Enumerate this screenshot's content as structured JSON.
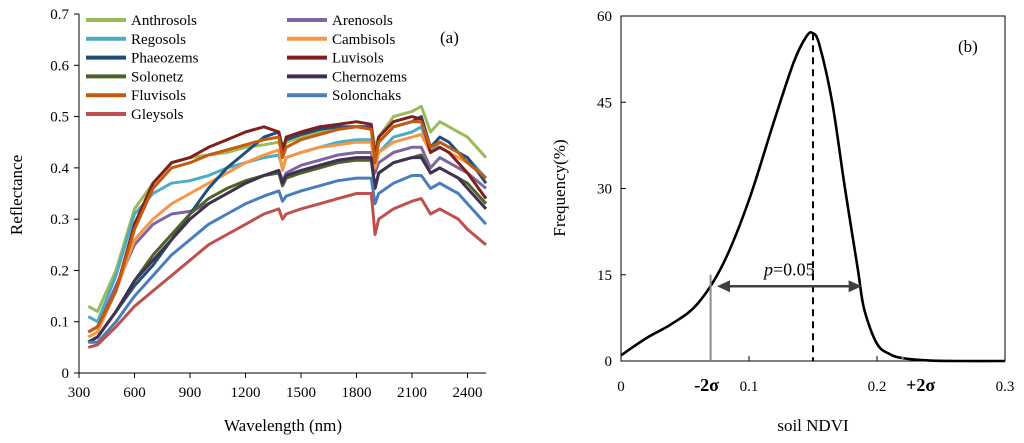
{
  "chart_data": [
    {
      "type": "line",
      "panel_label": "(a)",
      "title": "",
      "xlabel": "Wavelength (nm)",
      "ylabel": "Reflectance",
      "xlim": [
        300,
        2500
      ],
      "ylim": [
        0,
        0.7
      ],
      "xticks": [
        300,
        600,
        900,
        1200,
        1500,
        1800,
        2100,
        2400
      ],
      "yticks": [
        0,
        0.1,
        0.2,
        0.3,
        0.4,
        0.5,
        0.6,
        0.7
      ],
      "grid": false,
      "legend_position": "top",
      "series": [
        {
          "name": "Anthrosols",
          "color": "#9bbb59",
          "x": [
            350,
            400,
            500,
            600,
            700,
            800,
            900,
            1000,
            1100,
            1200,
            1300,
            1380,
            1400,
            1420,
            1500,
            1600,
            1700,
            1800,
            1880,
            1900,
            1920,
            2000,
            2100,
            2150,
            2200,
            2250,
            2300,
            2350,
            2400,
            2500
          ],
          "y": [
            0.13,
            0.12,
            0.2,
            0.32,
            0.37,
            0.41,
            0.42,
            0.425,
            0.43,
            0.44,
            0.445,
            0.45,
            0.43,
            0.45,
            0.46,
            0.47,
            0.475,
            0.48,
            0.48,
            0.44,
            0.46,
            0.5,
            0.51,
            0.52,
            0.47,
            0.49,
            0.48,
            0.47,
            0.46,
            0.42
          ]
        },
        {
          "name": "Arenosols",
          "color": "#8064a2",
          "x": [
            350,
            400,
            500,
            600,
            700,
            800,
            900,
            1000,
            1100,
            1200,
            1300,
            1380,
            1400,
            1420,
            1500,
            1600,
            1700,
            1800,
            1880,
            1900,
            1920,
            2000,
            2100,
            2150,
            2200,
            2250,
            2300,
            2350,
            2400,
            2500
          ],
          "y": [
            0.08,
            0.09,
            0.17,
            0.25,
            0.29,
            0.31,
            0.315,
            0.33,
            0.35,
            0.37,
            0.385,
            0.395,
            0.375,
            0.39,
            0.405,
            0.415,
            0.425,
            0.43,
            0.43,
            0.39,
            0.41,
            0.43,
            0.44,
            0.44,
            0.4,
            0.42,
            0.41,
            0.4,
            0.39,
            0.36
          ]
        },
        {
          "name": "Regosols",
          "color": "#4bacc6",
          "x": [
            350,
            400,
            500,
            600,
            700,
            800,
            900,
            1000,
            1100,
            1200,
            1300,
            1380,
            1400,
            1420,
            1500,
            1600,
            1700,
            1800,
            1880,
            1900,
            1920,
            2000,
            2100,
            2150,
            2200,
            2250,
            2300,
            2350,
            2400,
            2500
          ],
          "y": [
            0.11,
            0.1,
            0.19,
            0.31,
            0.35,
            0.37,
            0.375,
            0.385,
            0.4,
            0.41,
            0.42,
            0.425,
            0.4,
            0.42,
            0.43,
            0.44,
            0.45,
            0.455,
            0.455,
            0.41,
            0.43,
            0.46,
            0.47,
            0.48,
            0.43,
            0.45,
            0.44,
            0.43,
            0.42,
            0.38
          ]
        },
        {
          "name": "Cambisols",
          "color": "#f79646",
          "x": [
            350,
            400,
            500,
            600,
            700,
            800,
            900,
            1000,
            1100,
            1200,
            1300,
            1380,
            1400,
            1420,
            1500,
            1600,
            1700,
            1800,
            1880,
            1900,
            1920,
            2000,
            2100,
            2150,
            2200,
            2250,
            2300,
            2350,
            2400,
            2500
          ],
          "y": [
            0.07,
            0.08,
            0.16,
            0.26,
            0.3,
            0.33,
            0.35,
            0.37,
            0.39,
            0.41,
            0.425,
            0.435,
            0.395,
            0.42,
            0.43,
            0.44,
            0.445,
            0.45,
            0.45,
            0.4,
            0.43,
            0.45,
            0.46,
            0.465,
            0.43,
            0.44,
            0.43,
            0.42,
            0.41,
            0.38
          ]
        },
        {
          "name": "Phaeozems",
          "color": "#1f4e79",
          "x": [
            350,
            400,
            500,
            600,
            700,
            800,
            900,
            1000,
            1100,
            1200,
            1300,
            1380,
            1400,
            1420,
            1500,
            1600,
            1700,
            1800,
            1880,
            1900,
            1920,
            2000,
            2100,
            2150,
            2200,
            2250,
            2300,
            2350,
            2400,
            2500
          ],
          "y": [
            0.06,
            0.07,
            0.12,
            0.17,
            0.21,
            0.26,
            0.31,
            0.36,
            0.4,
            0.43,
            0.46,
            0.47,
            0.44,
            0.455,
            0.465,
            0.475,
            0.48,
            0.48,
            0.48,
            0.42,
            0.45,
            0.48,
            0.49,
            0.5,
            0.44,
            0.46,
            0.45,
            0.43,
            0.42,
            0.37
          ]
        },
        {
          "name": "Luvisols",
          "color": "#7f1f1f",
          "x": [
            350,
            400,
            500,
            600,
            700,
            800,
            900,
            1000,
            1100,
            1200,
            1300,
            1380,
            1400,
            1420,
            1500,
            1600,
            1700,
            1800,
            1880,
            1900,
            1920,
            2000,
            2100,
            2150,
            2200,
            2250,
            2300,
            2350,
            2400,
            2500
          ],
          "y": [
            0.08,
            0.09,
            0.16,
            0.29,
            0.37,
            0.41,
            0.42,
            0.44,
            0.455,
            0.47,
            0.48,
            0.47,
            0.43,
            0.46,
            0.47,
            0.48,
            0.485,
            0.49,
            0.485,
            0.42,
            0.46,
            0.49,
            0.5,
            0.495,
            0.43,
            0.44,
            0.43,
            0.41,
            0.39,
            0.34
          ]
        },
        {
          "name": "Solonetz",
          "color": "#4f6228",
          "x": [
            350,
            400,
            500,
            600,
            700,
            800,
            900,
            1000,
            1100,
            1200,
            1300,
            1380,
            1400,
            1420,
            1500,
            1600,
            1700,
            1800,
            1880,
            1900,
            1920,
            2000,
            2100,
            2150,
            2200,
            2250,
            2300,
            2350,
            2400,
            2500
          ],
          "y": [
            0.06,
            0.07,
            0.12,
            0.18,
            0.23,
            0.27,
            0.31,
            0.34,
            0.36,
            0.375,
            0.385,
            0.39,
            0.365,
            0.38,
            0.39,
            0.4,
            0.41,
            0.415,
            0.415,
            0.36,
            0.39,
            0.41,
            0.42,
            0.425,
            0.39,
            0.4,
            0.39,
            0.38,
            0.37,
            0.33
          ]
        },
        {
          "name": "Chernozems",
          "color": "#403152",
          "x": [
            350,
            400,
            500,
            600,
            700,
            800,
            900,
            1000,
            1100,
            1200,
            1300,
            1380,
            1400,
            1420,
            1500,
            1600,
            1700,
            1800,
            1880,
            1900,
            1920,
            2000,
            2100,
            2150,
            2200,
            2250,
            2300,
            2350,
            2400,
            2500
          ],
          "y": [
            0.06,
            0.07,
            0.12,
            0.18,
            0.22,
            0.26,
            0.3,
            0.33,
            0.35,
            0.37,
            0.385,
            0.395,
            0.37,
            0.385,
            0.395,
            0.405,
            0.415,
            0.42,
            0.42,
            0.36,
            0.39,
            0.41,
            0.42,
            0.42,
            0.39,
            0.4,
            0.39,
            0.38,
            0.36,
            0.32
          ]
        },
        {
          "name": "Fluvisols",
          "color": "#c55a11",
          "x": [
            350,
            400,
            500,
            600,
            700,
            800,
            900,
            1000,
            1100,
            1200,
            1300,
            1380,
            1400,
            1420,
            1500,
            1600,
            1700,
            1800,
            1880,
            1900,
            1920,
            2000,
            2100,
            2150,
            2200,
            2250,
            2300,
            2350,
            2400,
            2500
          ],
          "y": [
            0.08,
            0.09,
            0.16,
            0.28,
            0.36,
            0.4,
            0.41,
            0.425,
            0.435,
            0.445,
            0.455,
            0.46,
            0.42,
            0.44,
            0.455,
            0.465,
            0.475,
            0.48,
            0.475,
            0.41,
            0.45,
            0.48,
            0.49,
            0.49,
            0.44,
            0.45,
            0.44,
            0.43,
            0.41,
            0.38
          ]
        },
        {
          "name": "Solonchaks",
          "color": "#4a7ebb",
          "x": [
            350,
            400,
            500,
            600,
            700,
            800,
            900,
            1000,
            1100,
            1200,
            1300,
            1380,
            1400,
            1420,
            1500,
            1600,
            1700,
            1800,
            1880,
            1900,
            1920,
            2000,
            2100,
            2150,
            2200,
            2250,
            2300,
            2350,
            2400,
            2500
          ],
          "y": [
            0.06,
            0.06,
            0.1,
            0.15,
            0.19,
            0.23,
            0.26,
            0.29,
            0.31,
            0.33,
            0.345,
            0.355,
            0.335,
            0.345,
            0.355,
            0.365,
            0.375,
            0.38,
            0.38,
            0.33,
            0.35,
            0.37,
            0.385,
            0.385,
            0.36,
            0.37,
            0.36,
            0.35,
            0.33,
            0.29
          ]
        },
        {
          "name": "Gleysols",
          "color": "#c0504d",
          "x": [
            350,
            400,
            500,
            600,
            700,
            800,
            900,
            1000,
            1100,
            1200,
            1300,
            1380,
            1400,
            1420,
            1500,
            1600,
            1700,
            1800,
            1880,
            1900,
            1920,
            2000,
            2100,
            2150,
            2200,
            2250,
            2300,
            2350,
            2400,
            2500
          ],
          "y": [
            0.05,
            0.055,
            0.09,
            0.13,
            0.16,
            0.19,
            0.22,
            0.25,
            0.27,
            0.29,
            0.31,
            0.32,
            0.3,
            0.31,
            0.32,
            0.33,
            0.34,
            0.35,
            0.35,
            0.27,
            0.3,
            0.32,
            0.335,
            0.34,
            0.31,
            0.32,
            0.31,
            0.3,
            0.28,
            0.25
          ]
        }
      ]
    },
    {
      "type": "line",
      "panel_label": "(b)",
      "title": "",
      "xlabel": "soil NDVI",
      "ylabel": "Frequency(%)",
      "xlim": [
        0,
        0.3
      ],
      "ylim": [
        0,
        60
      ],
      "xticks": [
        0,
        0.1,
        0.2,
        0.3
      ],
      "yticks": [
        0,
        15,
        30,
        45,
        60
      ],
      "grid": false,
      "series": [
        {
          "name": "",
          "color": "#000000",
          "x": [
            0,
            0.02,
            0.04,
            0.06,
            0.08,
            0.1,
            0.12,
            0.135,
            0.145,
            0.15,
            0.155,
            0.165,
            0.175,
            0.185,
            0.19,
            0.2,
            0.21,
            0.22,
            0.24,
            0.26,
            0.3
          ],
          "y": [
            1,
            4,
            6.5,
            10,
            17,
            28,
            42,
            52,
            56.5,
            57,
            55,
            45,
            30,
            16,
            9,
            3,
            1.2,
            0.5,
            0.1,
            0,
            0
          ]
        }
      ],
      "mean_line": {
        "x": 0.15,
        "y_top": 57
      },
      "sigma_lines": [
        {
          "label": "-2σ",
          "x": 0.07,
          "y_top": 15
        },
        {
          "label": "+2σ",
          "x": 0.22,
          "y_top": 0.8
        }
      ],
      "interval": {
        "x_start": 0.075,
        "x_end": 0.188,
        "y": 13,
        "label_italic": "p",
        "label_rest": "=0.05"
      }
    }
  ]
}
